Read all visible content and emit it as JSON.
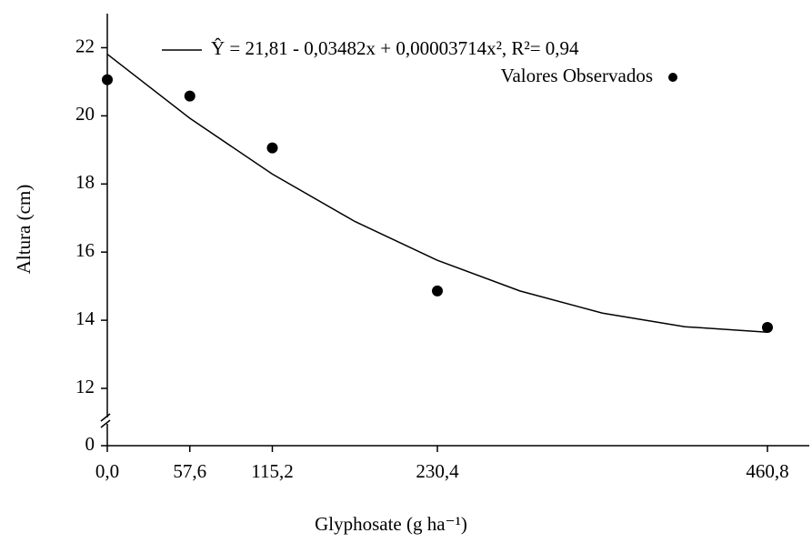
{
  "chart_data": {
    "type": "scatter",
    "x_label": "Glyphosate (g ha⁻¹)",
    "y_label": "Altura (cm)",
    "xlim": [
      0,
      490
    ],
    "xticks": [
      {
        "value": 0,
        "label": "0,0"
      },
      {
        "value": 57.6,
        "label": "57,6"
      },
      {
        "value": 115.2,
        "label": "115,2"
      },
      {
        "value": 230.4,
        "label": "230,4"
      },
      {
        "value": 460.8,
        "label": "460,8"
      }
    ],
    "ylim": [
      12,
      23
    ],
    "yticks": [
      0,
      12,
      14,
      16,
      18,
      20,
      22
    ],
    "axis_break": true,
    "series": [
      {
        "name": "Ŷ = 21,81 - 0,03482x + 0,00003714x², R²= 0,94",
        "kind": "line",
        "color": "#000000",
        "x": [
          0,
          57.6,
          115.2,
          172.8,
          230.4,
          288,
          345.6,
          403.2,
          460.8
        ],
        "values": [
          21.81,
          19.93,
          18.29,
          16.9,
          15.76,
          14.86,
          14.21,
          13.81,
          13.65
        ]
      },
      {
        "name": "Valores Observados",
        "kind": "points",
        "color": "#000000",
        "x": [
          0,
          57.6,
          115.2,
          230.4,
          460.8
        ],
        "values": [
          21.06,
          20.58,
          19.06,
          14.86,
          13.79
        ]
      }
    ]
  }
}
